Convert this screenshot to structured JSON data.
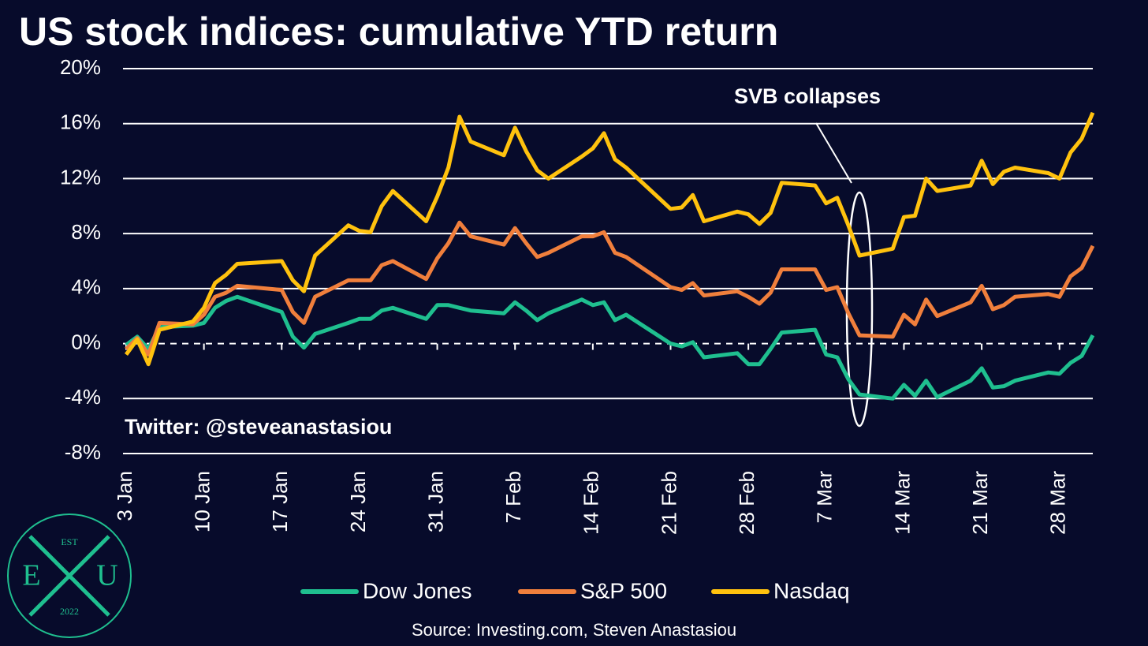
{
  "chart_data": {
    "type": "line",
    "title": "US stock indices: cumulative YTD return",
    "x": [
      "3 Jan",
      "4 Jan",
      "5 Jan",
      "6 Jan",
      "9 Jan",
      "10 Jan",
      "11 Jan",
      "12 Jan",
      "13 Jan",
      "17 Jan",
      "18 Jan",
      "19 Jan",
      "20 Jan",
      "23 Jan",
      "24 Jan",
      "25 Jan",
      "26 Jan",
      "27 Jan",
      "30 Jan",
      "31 Jan",
      "1 Feb",
      "2 Feb",
      "3 Feb",
      "6 Feb",
      "7 Feb",
      "8 Feb",
      "9 Feb",
      "10 Feb",
      "13 Feb",
      "14 Feb",
      "15 Feb",
      "16 Feb",
      "17 Feb",
      "21 Feb",
      "22 Feb",
      "23 Feb",
      "24 Feb",
      "27 Feb",
      "28 Feb",
      "1 Mar",
      "2 Mar",
      "3 Mar",
      "6 Mar",
      "7 Mar",
      "8 Mar",
      "9 Mar",
      "10 Mar",
      "13 Mar",
      "14 Mar",
      "15 Mar",
      "16 Mar",
      "17 Mar",
      "20 Mar",
      "21 Mar",
      "22 Mar",
      "23 Mar",
      "24 Mar",
      "27 Mar",
      "28 Mar",
      "29 Mar",
      "30 Mar",
      "31 Mar"
    ],
    "series": [
      {
        "name": "Dow Jones",
        "color": "#1fbf8f",
        "values": [
          -0.1,
          0.5,
          -0.4,
          1.2,
          1.3,
          1.5,
          2.6,
          3.1,
          3.4,
          2.3,
          0.5,
          -0.3,
          0.7,
          1.5,
          1.8,
          1.8,
          2.4,
          2.6,
          1.8,
          2.8,
          2.8,
          2.6,
          2.4,
          2.2,
          3.0,
          2.4,
          1.7,
          2.2,
          3.2,
          2.8,
          3.0,
          1.7,
          2.1,
          0.0,
          -0.2,
          0.1,
          -1.0,
          -0.7,
          -1.5,
          -1.5,
          -0.4,
          0.8,
          1.0,
          -0.8,
          -1.0,
          -2.6,
          -3.7,
          -4.0,
          -3.0,
          -3.8,
          -2.7,
          -3.9,
          -2.7,
          -1.8,
          -3.2,
          -3.1,
          -2.7,
          -2.1,
          -2.2,
          -1.4,
          -0.9,
          0.6
        ]
      },
      {
        "name": "S&P 500",
        "color": "#f07f3c",
        "values": [
          -0.4,
          0.4,
          -0.8,
          1.5,
          1.4,
          2.1,
          3.4,
          3.7,
          4.2,
          3.9,
          2.3,
          1.5,
          3.4,
          4.6,
          4.6,
          4.6,
          5.7,
          6.0,
          4.7,
          6.2,
          7.3,
          8.8,
          7.8,
          7.2,
          8.4,
          7.3,
          6.3,
          6.6,
          7.8,
          7.8,
          8.1,
          6.6,
          6.3,
          4.1,
          3.9,
          4.4,
          3.5,
          3.8,
          3.4,
          2.9,
          3.7,
          5.4,
          5.4,
          3.9,
          4.1,
          2.2,
          0.6,
          0.5,
          2.1,
          1.4,
          3.2,
          2.0,
          3.0,
          4.2,
          2.5,
          2.8,
          3.4,
          3.6,
          3.4,
          4.9,
          5.5,
          7.1
        ]
      },
      {
        "name": "Nasdaq",
        "color": "#ffc20e",
        "values": [
          -0.8,
          0.3,
          -1.5,
          1.0,
          1.6,
          2.6,
          4.4,
          5.0,
          5.8,
          6.0,
          4.6,
          3.8,
          6.4,
          8.6,
          8.2,
          8.1,
          10.0,
          11.1,
          8.9,
          10.7,
          12.8,
          16.5,
          14.7,
          13.7,
          15.7,
          14.0,
          12.6,
          12.0,
          13.6,
          14.2,
          15.3,
          13.4,
          12.8,
          9.8,
          9.9,
          10.8,
          8.9,
          9.6,
          9.4,
          8.7,
          9.5,
          11.7,
          11.5,
          10.2,
          10.6,
          8.6,
          6.4,
          6.9,
          9.2,
          9.3,
          12.0,
          11.1,
          11.5,
          13.3,
          11.6,
          12.5,
          12.8,
          12.4,
          12.0,
          13.9,
          14.9,
          16.8
        ]
      }
    ],
    "xlim": [
      "3 Jan",
      "31 Mar"
    ],
    "xticks": [
      "3 Jan",
      "10 Jan",
      "17 Jan",
      "24 Jan",
      "31 Jan",
      "7 Feb",
      "14 Feb",
      "21 Feb",
      "28 Feb",
      "7 Mar",
      "14 Mar",
      "21 Mar",
      "28 Mar"
    ],
    "ylim": [
      -8,
      20
    ],
    "yticks": [
      {
        "value": -8,
        "label": "-8%"
      },
      {
        "value": -4,
        "label": "-4%"
      },
      {
        "value": 0,
        "label": "0%"
      },
      {
        "value": 4,
        "label": "4%"
      },
      {
        "value": 8,
        "label": "8%"
      },
      {
        "value": 12,
        "label": "12%"
      },
      {
        "value": 16,
        "label": "16%"
      },
      {
        "value": 20,
        "label": "20%"
      }
    ],
    "grid": true,
    "zero_line": "dashed",
    "legend": "bottom",
    "annotations": [
      "SVB collapses",
      "Twitter: @steveanastasiou"
    ],
    "source": "Source: Investing.com, Steven Anastasiou"
  },
  "logo": {
    "top": "EST",
    "left": "E",
    "right": "U",
    "bottom": "2022"
  }
}
